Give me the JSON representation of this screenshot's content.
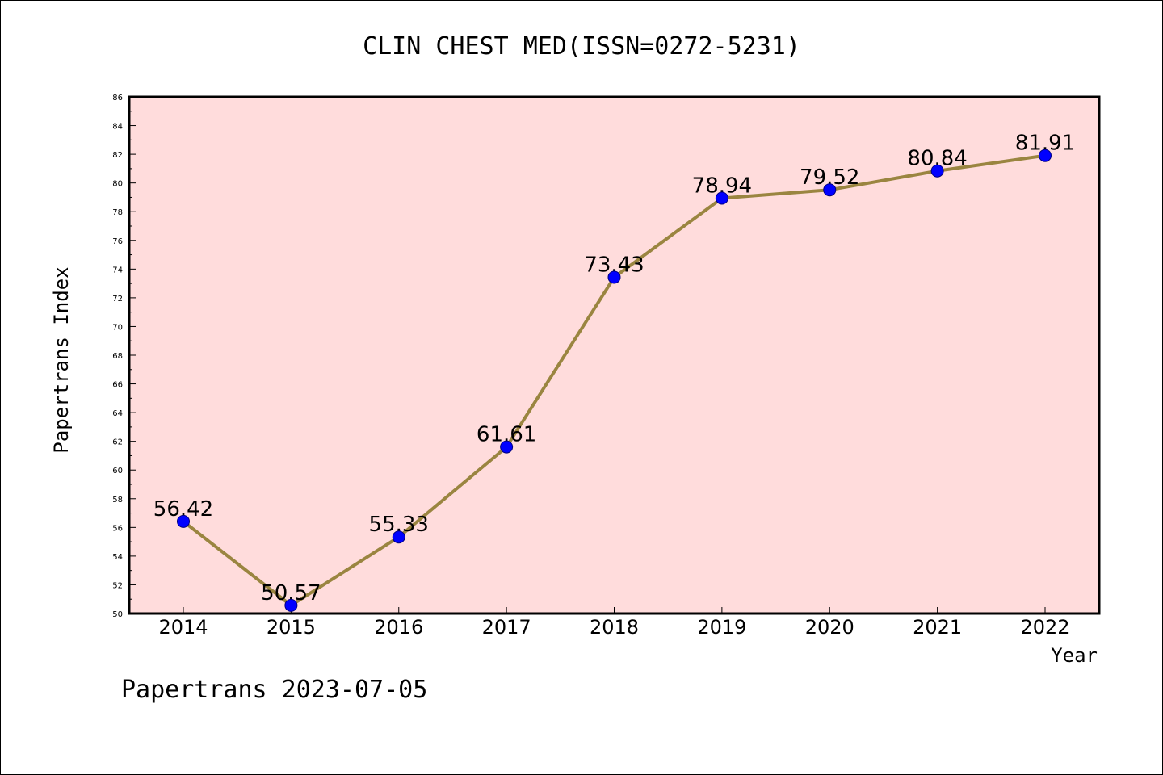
{
  "chart_data": {
    "type": "line",
    "title": "CLIN CHEST MED(ISSN=0272-5231)",
    "xlabel": "Year",
    "ylabel": "Papertrans Index",
    "x": [
      "2014",
      "2015",
      "2016",
      "2017",
      "2018",
      "2019",
      "2020",
      "2021",
      "2022"
    ],
    "series": [
      {
        "values": [
          56.42,
          50.57,
          55.33,
          61.61,
          73.43,
          78.94,
          79.52,
          80.84,
          81.91
        ],
        "labels": [
          "56.42",
          "50.57",
          "55.33",
          "61.61",
          "73.43",
          "78.94",
          "79.52",
          "80.84",
          "81.91"
        ]
      }
    ],
    "ylim": [
      50,
      86
    ],
    "yticks": [
      "50",
      "52",
      "54",
      "56",
      "58",
      "60",
      "62",
      "64",
      "66",
      "68",
      "70",
      "72",
      "74",
      "76",
      "78",
      "80",
      "82",
      "84",
      "86"
    ],
    "grid": false,
    "colors": {
      "plot_background": "#ffdcdc",
      "line": "#9a8540",
      "marker_fill": "#0000ff",
      "marker_stroke": "#000080"
    }
  },
  "footer": {
    "text": "Papertrans 2023-07-05"
  }
}
